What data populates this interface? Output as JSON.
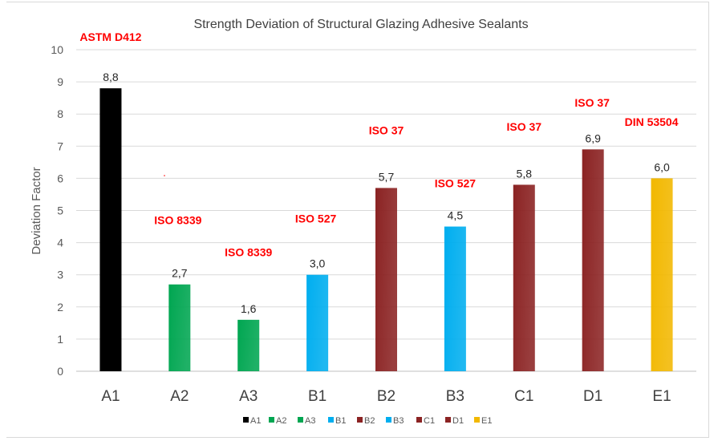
{
  "chart_data": {
    "type": "bar",
    "title": "Strength Deviation of Structural Glazing Adhesive Sealants",
    "xlabel": "",
    "ylabel": "Deviation Factor",
    "ylim": [
      0,
      10
    ],
    "yticks": [
      "0",
      "1",
      "2",
      "3",
      "4",
      "5",
      "6",
      "7",
      "8",
      "9",
      "10"
    ],
    "grid": true,
    "legend_position": "bottom",
    "categories": [
      "A1",
      "A2",
      "A3",
      "B1",
      "B2",
      "B3",
      "C1",
      "D1",
      "E1"
    ],
    "values": [
      8.8,
      2.7,
      1.6,
      3.0,
      5.7,
      4.5,
      5.8,
      6.9,
      6.0
    ],
    "value_labels": [
      "8,8",
      "2,7",
      "1,6",
      "3,0",
      "5,7",
      "4,5",
      "5,8",
      "6,9",
      "6,0"
    ],
    "colors": [
      "#000000",
      "#00a651",
      "#00a651",
      "#00aeef",
      "#8b2323",
      "#00aeef",
      "#8b2323",
      "#8b2323",
      "#f2b800"
    ],
    "annotations": [
      {
        "text": "ASTM D412",
        "category": "A1",
        "y": 10.4
      },
      {
        "text": "ISO 8339",
        "category": "A2",
        "y": 4.7
      },
      {
        "text": "ISO 8339",
        "category": "A3",
        "y": 3.7
      },
      {
        "text": "ISO 527",
        "category": "B1",
        "y": 4.75
      },
      {
        "text": "ISO 37",
        "category": "B2",
        "y": 7.5
      },
      {
        "text": "ISO 527",
        "category": "B3",
        "y": 5.85
      },
      {
        "text": "ISO 37",
        "category": "C1",
        "y": 7.6
      },
      {
        "text": "ISO 37",
        "category": "D1",
        "y": 8.35
      },
      {
        "text": "DIN 53504",
        "category": "E1",
        "y": 7.75
      }
    ],
    "legend": [
      "A1",
      "A2",
      "A3",
      "B1",
      "B2",
      "B3",
      "C1",
      "D1",
      "E1"
    ]
  }
}
